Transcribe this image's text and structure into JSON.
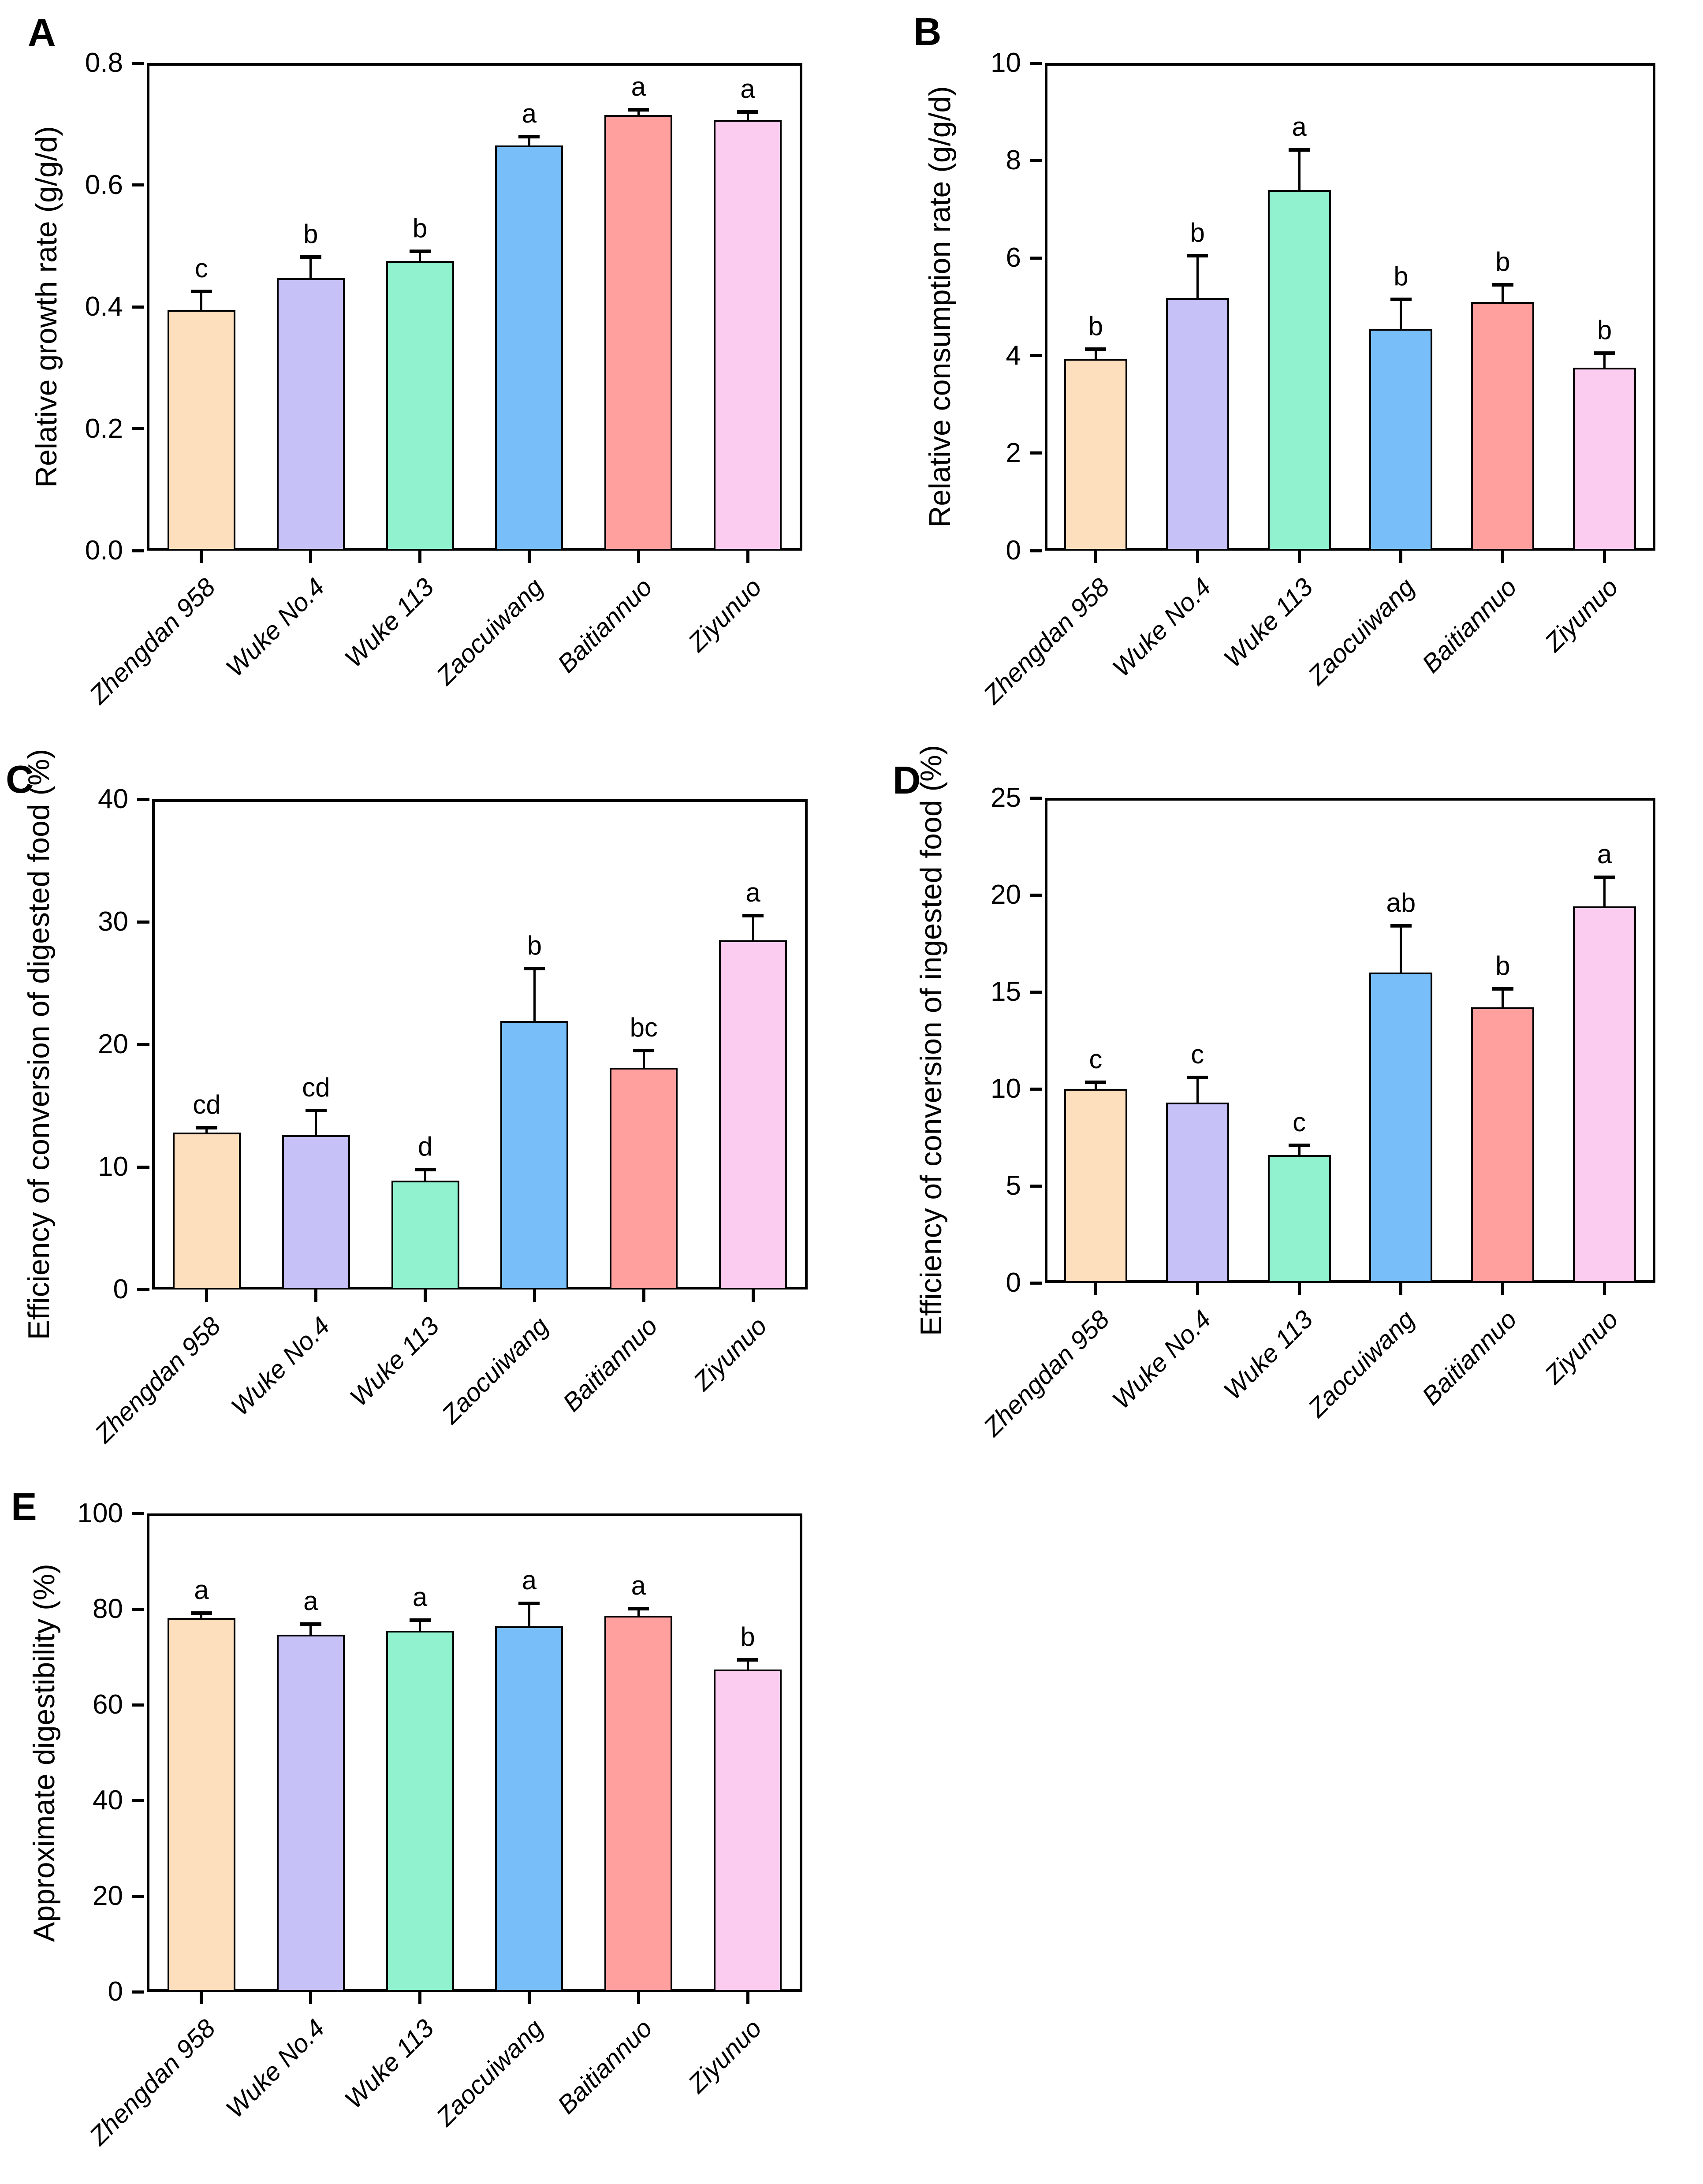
{
  "figure": {
    "bar_colors": [
      "#FDDFBD",
      "#C6C1F7",
      "#90F2CF",
      "#78BEF8",
      "#FF9F9E",
      "#FCCBF0"
    ],
    "categories": [
      "Zhengdan 958",
      "Wuke No.4",
      "Wuke 113",
      "Zaocuiwang",
      "Baitiannuo",
      "Ziyunuo"
    ]
  },
  "chart_data": [
    {
      "type": "bar",
      "panel_label": "A",
      "ylabel": "Relative growth rate (g/g/d)",
      "ylim": [
        0,
        0.8
      ],
      "yticks": [
        0,
        0.2,
        0.4,
        0.6,
        0.8
      ],
      "tick_decimals": 1,
      "categories": [
        "Zhengdan 958",
        "Wuke No.4",
        "Wuke 113",
        "Zaocuiwang",
        "Baitiannuo",
        "Ziyunuo"
      ],
      "values": [
        0.395,
        0.447,
        0.475,
        0.665,
        0.715,
        0.707
      ],
      "errors_plus": [
        0.03,
        0.035,
        0.016,
        0.014,
        0.008,
        0.013
      ],
      "sig_letters": [
        "c",
        "b",
        "b",
        "a",
        "a",
        "a"
      ],
      "legend": "none",
      "grid": "off"
    },
    {
      "type": "bar",
      "panel_label": "B",
      "ylabel": "Relative consumption rate (g/g/d)",
      "ylim": [
        0,
        10
      ],
      "yticks": [
        0,
        2,
        4,
        6,
        8,
        10
      ],
      "tick_decimals": 0,
      "categories": [
        "Zhengdan 958",
        "Wuke No.4",
        "Wuke 113",
        "Zaocuiwang",
        "Baitiannuo",
        "Ziyunuo"
      ],
      "values": [
        3.93,
        5.18,
        7.4,
        4.55,
        5.1,
        3.75
      ],
      "errors_plus": [
        0.2,
        0.87,
        0.82,
        0.6,
        0.35,
        0.3
      ],
      "sig_letters": [
        "b",
        "b",
        "a",
        "b",
        "b",
        "b"
      ],
      "legend": "none",
      "grid": "off"
    },
    {
      "type": "bar",
      "panel_label": "C",
      "ylabel": "Efficiency of conversion of digested food (%)",
      "ylim": [
        0,
        40
      ],
      "yticks": [
        0,
        10,
        20,
        30,
        40
      ],
      "tick_decimals": 0,
      "categories": [
        "Zhengdan 958",
        "Wuke No.4",
        "Wuke 113",
        "Zaocuiwang",
        "Baitiannuo",
        "Ziyunuo"
      ],
      "values": [
        12.8,
        12.6,
        8.9,
        21.9,
        18.1,
        28.5
      ],
      "errors_plus": [
        0.4,
        2.0,
        0.9,
        4.3,
        1.4,
        2.0
      ],
      "sig_letters": [
        "cd",
        "cd",
        "d",
        "b",
        "bc",
        "a"
      ],
      "legend": "none",
      "grid": "off"
    },
    {
      "type": "bar",
      "panel_label": "D",
      "ylabel": "Efficiency of conversion of ingested food (%)",
      "ylim": [
        0,
        25
      ],
      "yticks": [
        0,
        5,
        10,
        15,
        20,
        25
      ],
      "tick_decimals": 0,
      "categories": [
        "Zhengdan 958",
        "Wuke No.4",
        "Wuke 113",
        "Zaocuiwang",
        "Baitiannuo",
        "Ziyunuo"
      ],
      "values": [
        10.0,
        9.3,
        6.6,
        16.0,
        14.2,
        19.4
      ],
      "errors_plus": [
        0.35,
        1.3,
        0.5,
        2.4,
        0.95,
        1.5
      ],
      "sig_letters": [
        "c",
        "c",
        "c",
        "ab",
        "b",
        "a"
      ],
      "legend": "none",
      "grid": "off"
    },
    {
      "type": "bar",
      "panel_label": "E",
      "ylabel": "Approximate digestibility (%)",
      "ylim": [
        0,
        100
      ],
      "yticks": [
        0,
        20,
        40,
        60,
        80,
        100
      ],
      "tick_decimals": 0,
      "categories": [
        "Zhengdan 958",
        "Wuke No.4",
        "Wuke 113",
        "Zaocuiwang",
        "Baitiannuo",
        "Ziyunuo"
      ],
      "values": [
        78.2,
        74.7,
        75.5,
        76.4,
        78.6,
        67.4
      ],
      "errors_plus": [
        1.0,
        2.2,
        2.2,
        4.8,
        1.5,
        2.0
      ],
      "sig_letters": [
        "a",
        "a",
        "a",
        "a",
        "a",
        "b"
      ],
      "legend": "none",
      "grid": "off"
    }
  ]
}
